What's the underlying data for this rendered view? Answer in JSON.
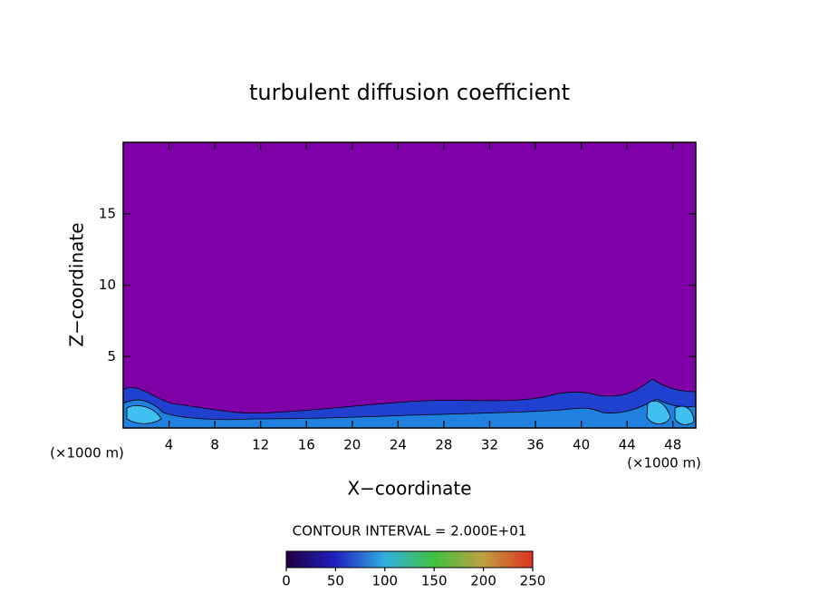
{
  "chart_data": {
    "type": "contour",
    "title": "turbulent diffusion coefficient",
    "xlabel": "X−coordinate",
    "ylabel": "Z−coordinate",
    "x_unit_left": "(×1000 m)",
    "x_unit_right": "(×1000 m)",
    "contour_note": "CONTOUR INTERVAL = 2.000E+01",
    "xlim": [
      0,
      50
    ],
    "xticks": [
      4,
      8,
      12,
      16,
      20,
      24,
      28,
      32,
      36,
      40,
      44,
      48
    ],
    "ylim": [
      0,
      20
    ],
    "yticks": [
      5,
      10,
      15
    ],
    "background_color": "#8000a8",
    "colorbar": {
      "lim": [
        0,
        250
      ],
      "ticks": [
        0,
        50,
        100,
        150,
        200,
        250
      ],
      "colors": [
        "#200040",
        "#2020c0",
        "#30b0e0",
        "#40c040",
        "#c0a040",
        "#e03020"
      ]
    }
  }
}
